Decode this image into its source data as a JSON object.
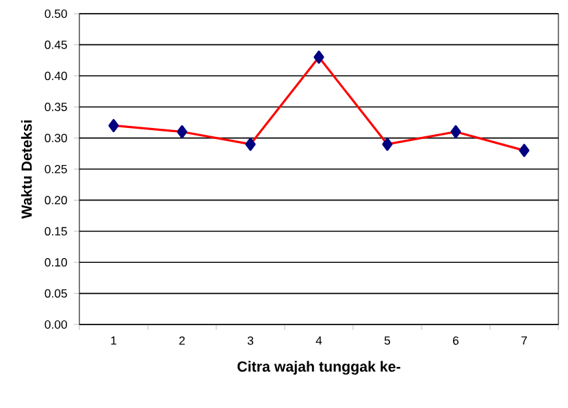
{
  "chart_data": {
    "type": "line",
    "xlabel": "Citra wajah tunggak ke-",
    "ylabel": "Waktu Deteksi",
    "categories": [
      "1",
      "2",
      "3",
      "4",
      "5",
      "6",
      "7"
    ],
    "series": [
      {
        "color": "#ff0000",
        "values": [
          0.32,
          0.31,
          0.29,
          0.43,
          0.29,
          0.31,
          0.28
        ]
      }
    ],
    "ylim": [
      0,
      0.5
    ],
    "yticks": [
      {
        "value": 0,
        "label": "0.00"
      },
      {
        "value": 0.05,
        "label": "0.05"
      },
      {
        "value": 0.1,
        "label": "0.10"
      },
      {
        "value": 0.15,
        "label": "0.15"
      },
      {
        "value": 0.2,
        "label": "0.20"
      },
      {
        "value": 0.25,
        "label": "0.25"
      },
      {
        "value": 0.3,
        "label": "0.30"
      },
      {
        "value": 0.35,
        "label": "0.35"
      },
      {
        "value": 0.4,
        "label": "0.40"
      },
      {
        "value": 0.45,
        "label": "0.45"
      },
      {
        "value": 0.5,
        "label": "0.50"
      }
    ],
    "grid": "y",
    "marker": "diamond",
    "line_style": "solid"
  }
}
